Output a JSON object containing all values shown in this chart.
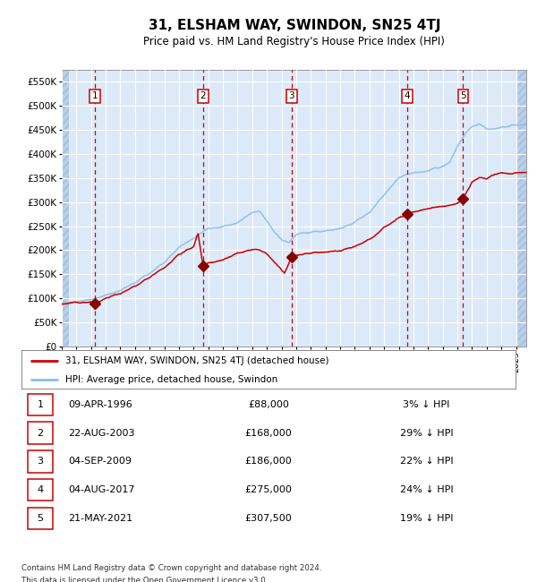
{
  "title": "31, ELSHAM WAY, SWINDON, SN25 4TJ",
  "subtitle": "Price paid vs. HM Land Registry's House Price Index (HPI)",
  "ylim": [
    0,
    575000
  ],
  "yticks": [
    0,
    50000,
    100000,
    150000,
    200000,
    250000,
    300000,
    350000,
    400000,
    450000,
    500000,
    550000
  ],
  "ytick_labels": [
    "£0",
    "£50K",
    "£100K",
    "£150K",
    "£200K",
    "£250K",
    "£300K",
    "£350K",
    "£400K",
    "£450K",
    "£500K",
    "£550K"
  ],
  "xlim_start": 1994.0,
  "xlim_end": 2025.7,
  "plot_bg_color": "#dce9f8",
  "hatch_color": "#b8cfe8",
  "grid_color": "#ffffff",
  "hpi_line_color": "#8bbde8",
  "price_line_color": "#cc0000",
  "sale_marker_color": "#880000",
  "dashed_line_color": "#cc0000",
  "box_color": "#cc0000",
  "sales": [
    {
      "num": 1,
      "year": 1996.27,
      "price": 88000,
      "label": "09-APR-1996",
      "price_label": "£88,000",
      "hpi_label": "3% ↓ HPI"
    },
    {
      "num": 2,
      "year": 2003.64,
      "price": 168000,
      "label": "22-AUG-2003",
      "price_label": "£168,000",
      "hpi_label": "29% ↓ HPI"
    },
    {
      "num": 3,
      "year": 2009.68,
      "price": 186000,
      "label": "04-SEP-2009",
      "price_label": "£186,000",
      "hpi_label": "22% ↓ HPI"
    },
    {
      "num": 4,
      "year": 2017.59,
      "price": 275000,
      "label": "04-AUG-2017",
      "price_label": "£275,000",
      "hpi_label": "24% ↓ HPI"
    },
    {
      "num": 5,
      "year": 2021.39,
      "price": 307500,
      "label": "21-MAY-2021",
      "price_label": "£307,500",
      "hpi_label": "19% ↓ HPI"
    }
  ],
  "legend_line1": "31, ELSHAM WAY, SWINDON, SN25 4TJ (detached house)",
  "legend_line2": "HPI: Average price, detached house, Swindon",
  "footer_line1": "Contains HM Land Registry data © Crown copyright and database right 2024.",
  "footer_line2": "This data is licensed under the Open Government Licence v3.0."
}
